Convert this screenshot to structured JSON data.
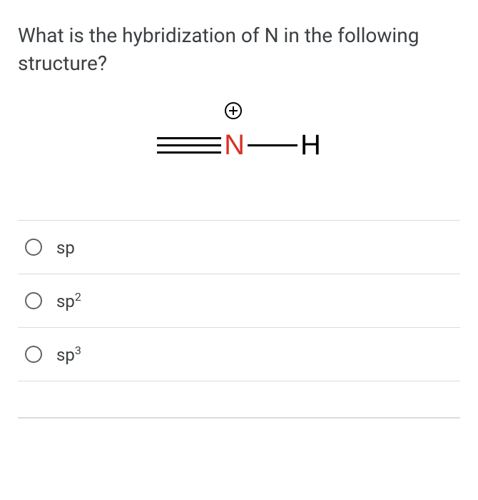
{
  "question": {
    "text": "What is the hybridization of N in the following structure?"
  },
  "structure": {
    "nitrogen_symbol": "N",
    "hydrogen_symbol": "H",
    "nitrogen_color": "#d93025",
    "hydrogen_color": "#000000",
    "bond_color": "#000000",
    "charge": "+",
    "triple_bond_width": 90,
    "single_bond_width": 70,
    "atom_fontsize": 40
  },
  "options": [
    {
      "label": "sp",
      "superscript": ""
    },
    {
      "label": "sp",
      "superscript": "2"
    },
    {
      "label": "sp",
      "superscript": "3"
    }
  ],
  "colors": {
    "text": "#3c4043",
    "divider": "#dadce0",
    "radio_border": "#5f6368",
    "background": "#ffffff"
  }
}
